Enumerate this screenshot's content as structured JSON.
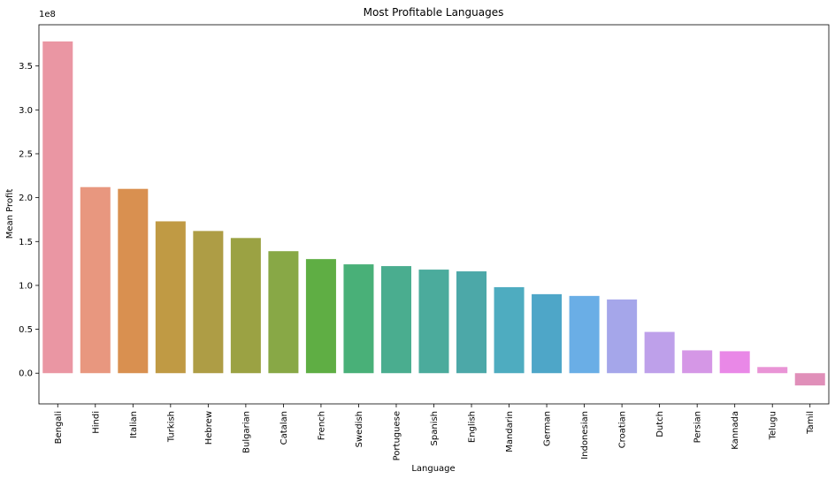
{
  "chart_data": {
    "type": "bar",
    "title": "Most Profitable Languages",
    "xlabel": "Language",
    "ylabel": "Mean Profit",
    "y_offset_text": "1e8",
    "ylim": [
      -0.35,
      3.97
    ],
    "yticks": [
      0.0,
      0.5,
      1.0,
      1.5,
      2.0,
      2.5,
      3.0,
      3.5
    ],
    "ytick_labels": [
      "0.0",
      "0.5",
      "1.0",
      "1.5",
      "2.0",
      "2.5",
      "3.0",
      "3.5"
    ],
    "grid": false,
    "legend": "none",
    "categories": [
      "Bengali",
      "Hindi",
      "Italian",
      "Turkish",
      "Hebrew",
      "Bulgarian",
      "Catalan",
      "French",
      "Swedish",
      "Portuguese",
      "Spanish",
      "English",
      "Mandarin",
      "German",
      "Indonesian",
      "Croatian",
      "Dutch",
      "Persian",
      "Kannada",
      "Telugu",
      "Tamil"
    ],
    "values": [
      3.78,
      2.12,
      2.1,
      1.73,
      1.62,
      1.54,
      1.39,
      1.3,
      1.24,
      1.22,
      1.18,
      1.16,
      0.98,
      0.9,
      0.88,
      0.84,
      0.47,
      0.26,
      0.25,
      0.07,
      -0.14
    ],
    "colors": [
      "#ea96a3",
      "#e8977f",
      "#d99050",
      "#c09a44",
      "#ae9d45",
      "#9ba243",
      "#88a846",
      "#5fae44",
      "#49b078",
      "#4aad8f",
      "#4bab9c",
      "#4ca8a8",
      "#4eacc0",
      "#4ea6c8",
      "#6aaee6",
      "#a5a6ea",
      "#bea0ea",
      "#d597e6",
      "#e988e7",
      "#e994d6",
      "#e08fb9"
    ]
  }
}
